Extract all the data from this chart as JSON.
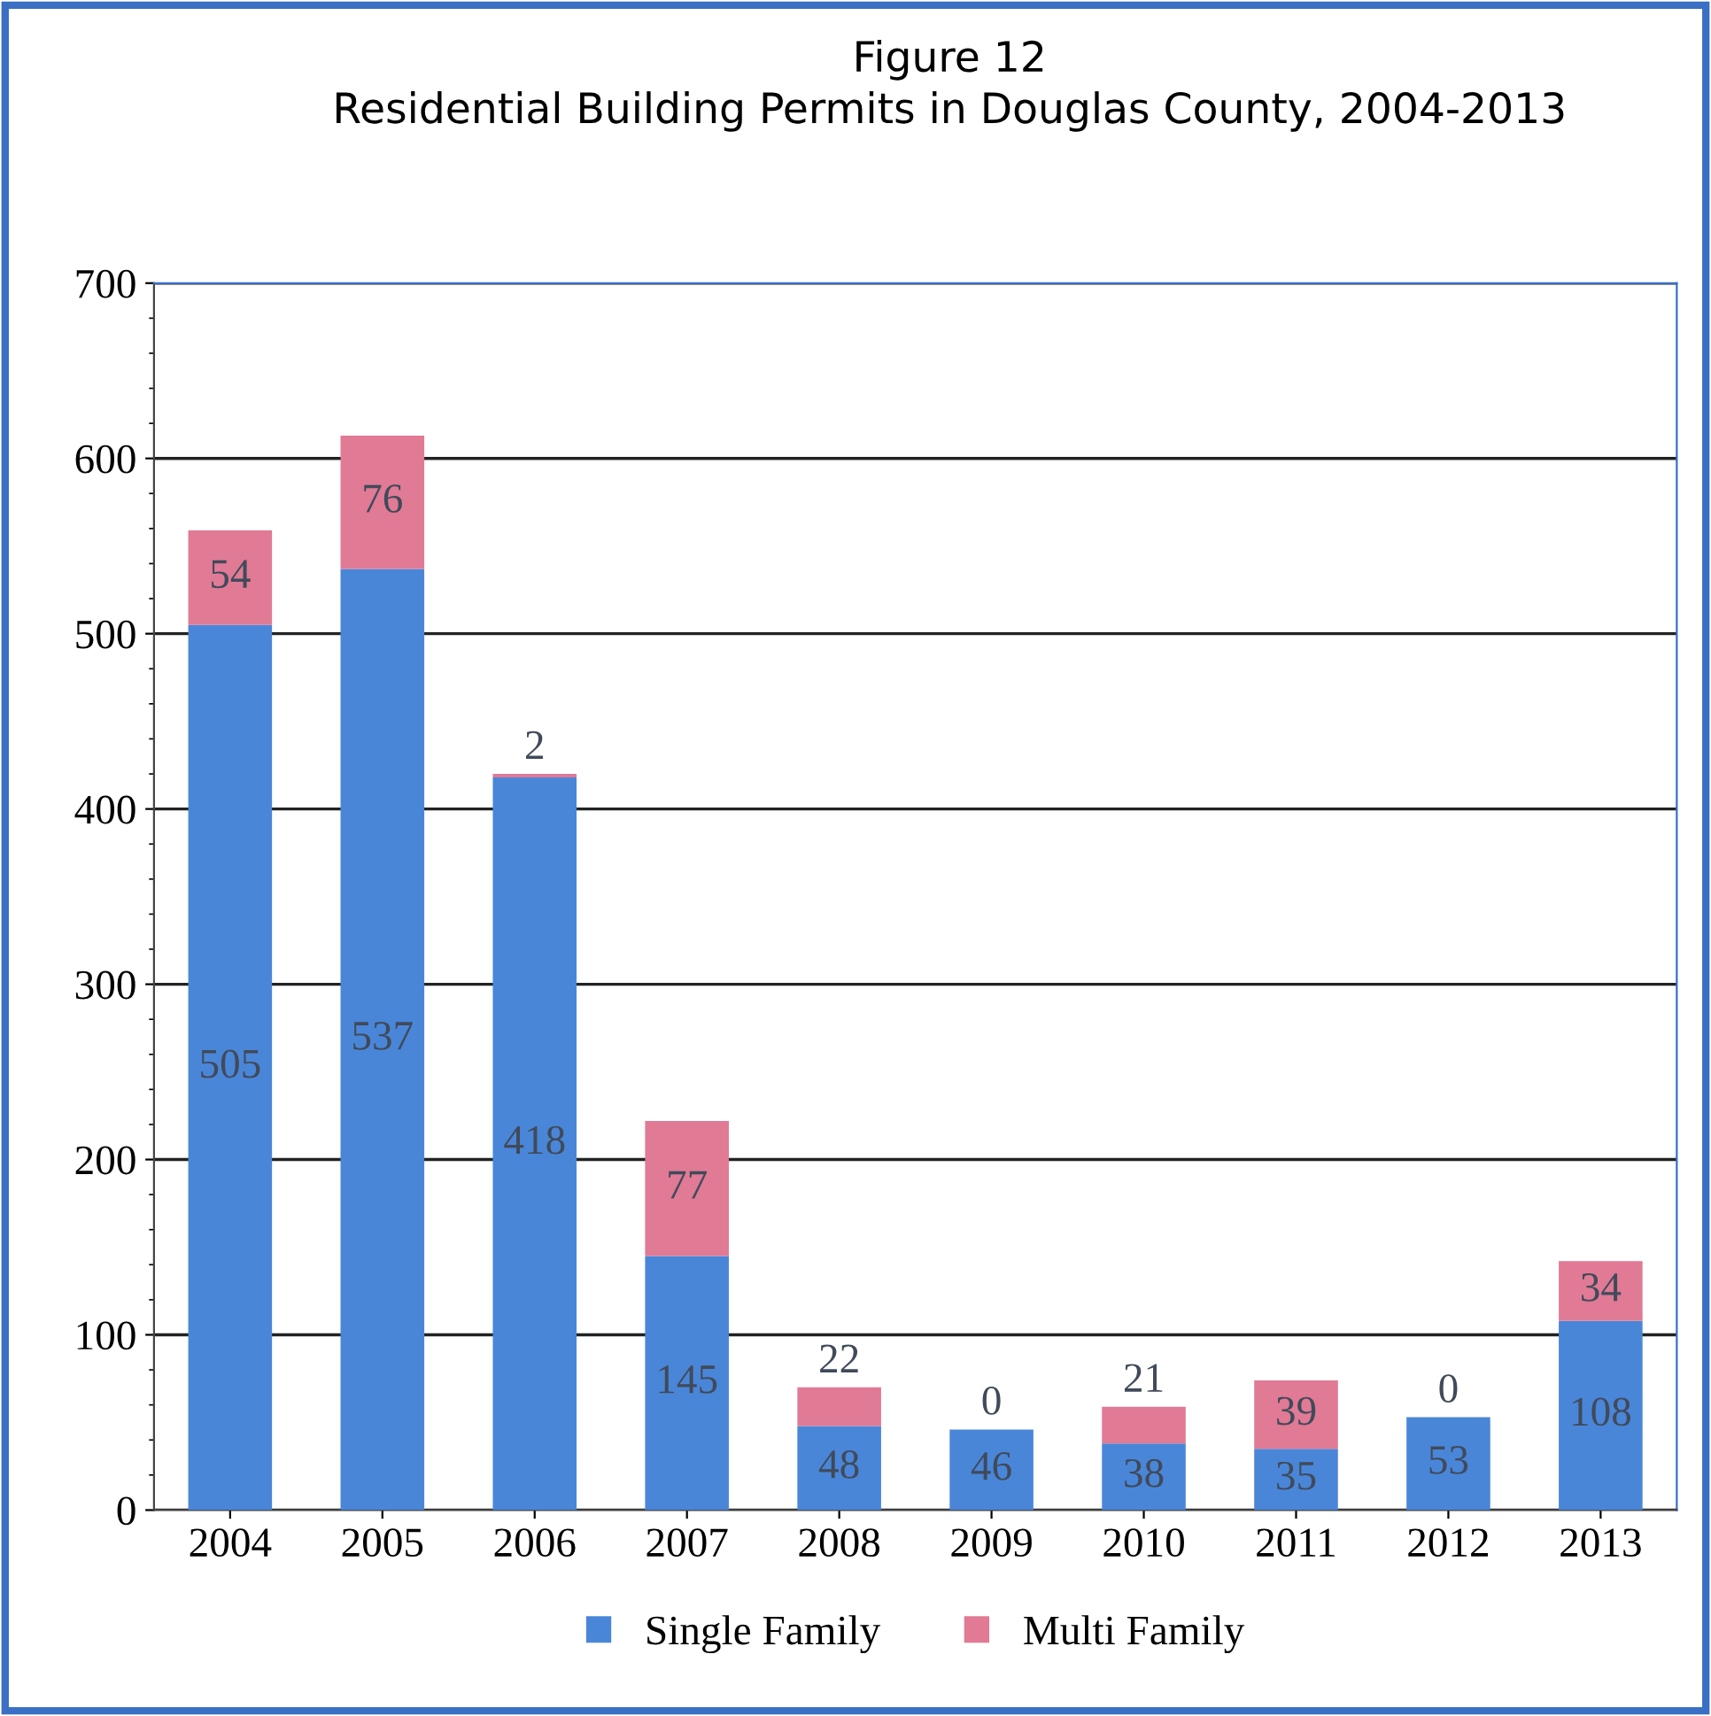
{
  "chart_data": {
    "type": "bar",
    "title": "Figure 12",
    "subtitle": "Residential Building Permits in Douglas County, 2004-2013",
    "categories": [
      "2004",
      "2005",
      "2006",
      "2007",
      "2008",
      "2009",
      "2010",
      "2011",
      "2012",
      "2013"
    ],
    "series": [
      {
        "name": "Single Family",
        "color": "#4a86d8",
        "values": [
          505,
          537,
          418,
          145,
          48,
          46,
          38,
          35,
          53,
          108
        ]
      },
      {
        "name": "Multi Family",
        "color": "#e07a95",
        "values": [
          54,
          76,
          2,
          77,
          22,
          0,
          21,
          39,
          0,
          34
        ]
      }
    ],
    "stacked": true,
    "ylim": [
      0,
      700
    ],
    "yticks": [
      0,
      100,
      200,
      300,
      400,
      500,
      600,
      700
    ],
    "grid": "y",
    "legend": "bottom",
    "data_labels": true
  }
}
